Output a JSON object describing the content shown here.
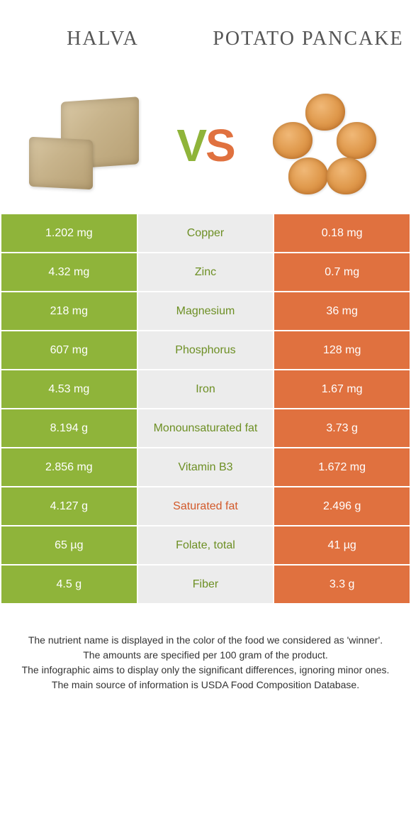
{
  "header": {
    "left_title": "Halva",
    "right_title": "Potato Pancake"
  },
  "vs": {
    "v": "V",
    "s": "S"
  },
  "colors": {
    "left_bg": "#8fb43a",
    "right_bg": "#e0713f",
    "mid_bg": "#ececec",
    "nutrient_left_color": "#6d8f24",
    "nutrient_right_color": "#d2592a",
    "value_text": "#ffffff"
  },
  "rows": [
    {
      "left": "1.202 mg",
      "nutrient": "Copper",
      "right": "0.18 mg",
      "winner": "left"
    },
    {
      "left": "4.32 mg",
      "nutrient": "Zinc",
      "right": "0.7 mg",
      "winner": "left"
    },
    {
      "left": "218 mg",
      "nutrient": "Magnesium",
      "right": "36 mg",
      "winner": "left"
    },
    {
      "left": "607 mg",
      "nutrient": "Phosphorus",
      "right": "128 mg",
      "winner": "left"
    },
    {
      "left": "4.53 mg",
      "nutrient": "Iron",
      "right": "1.67 mg",
      "winner": "left"
    },
    {
      "left": "8.194 g",
      "nutrient": "Monounsaturated fat",
      "right": "3.73 g",
      "winner": "left"
    },
    {
      "left": "2.856 mg",
      "nutrient": "Vitamin B3",
      "right": "1.672 mg",
      "winner": "left"
    },
    {
      "left": "4.127 g",
      "nutrient": "Saturated fat",
      "right": "2.496 g",
      "winner": "right"
    },
    {
      "left": "65 µg",
      "nutrient": "Folate, total",
      "right": "41 µg",
      "winner": "left"
    },
    {
      "left": "4.5 g",
      "nutrient": "Fiber",
      "right": "3.3 g",
      "winner": "left"
    }
  ],
  "footer": {
    "line1": "The nutrient name is displayed in the color of the food we considered as 'winner'.",
    "line2": "The amounts are specified per 100 gram of the product.",
    "line3": "The infographic aims to display only the significant differences, ignoring minor ones.",
    "line4": "The main source of information is USDA Food Composition Database."
  }
}
